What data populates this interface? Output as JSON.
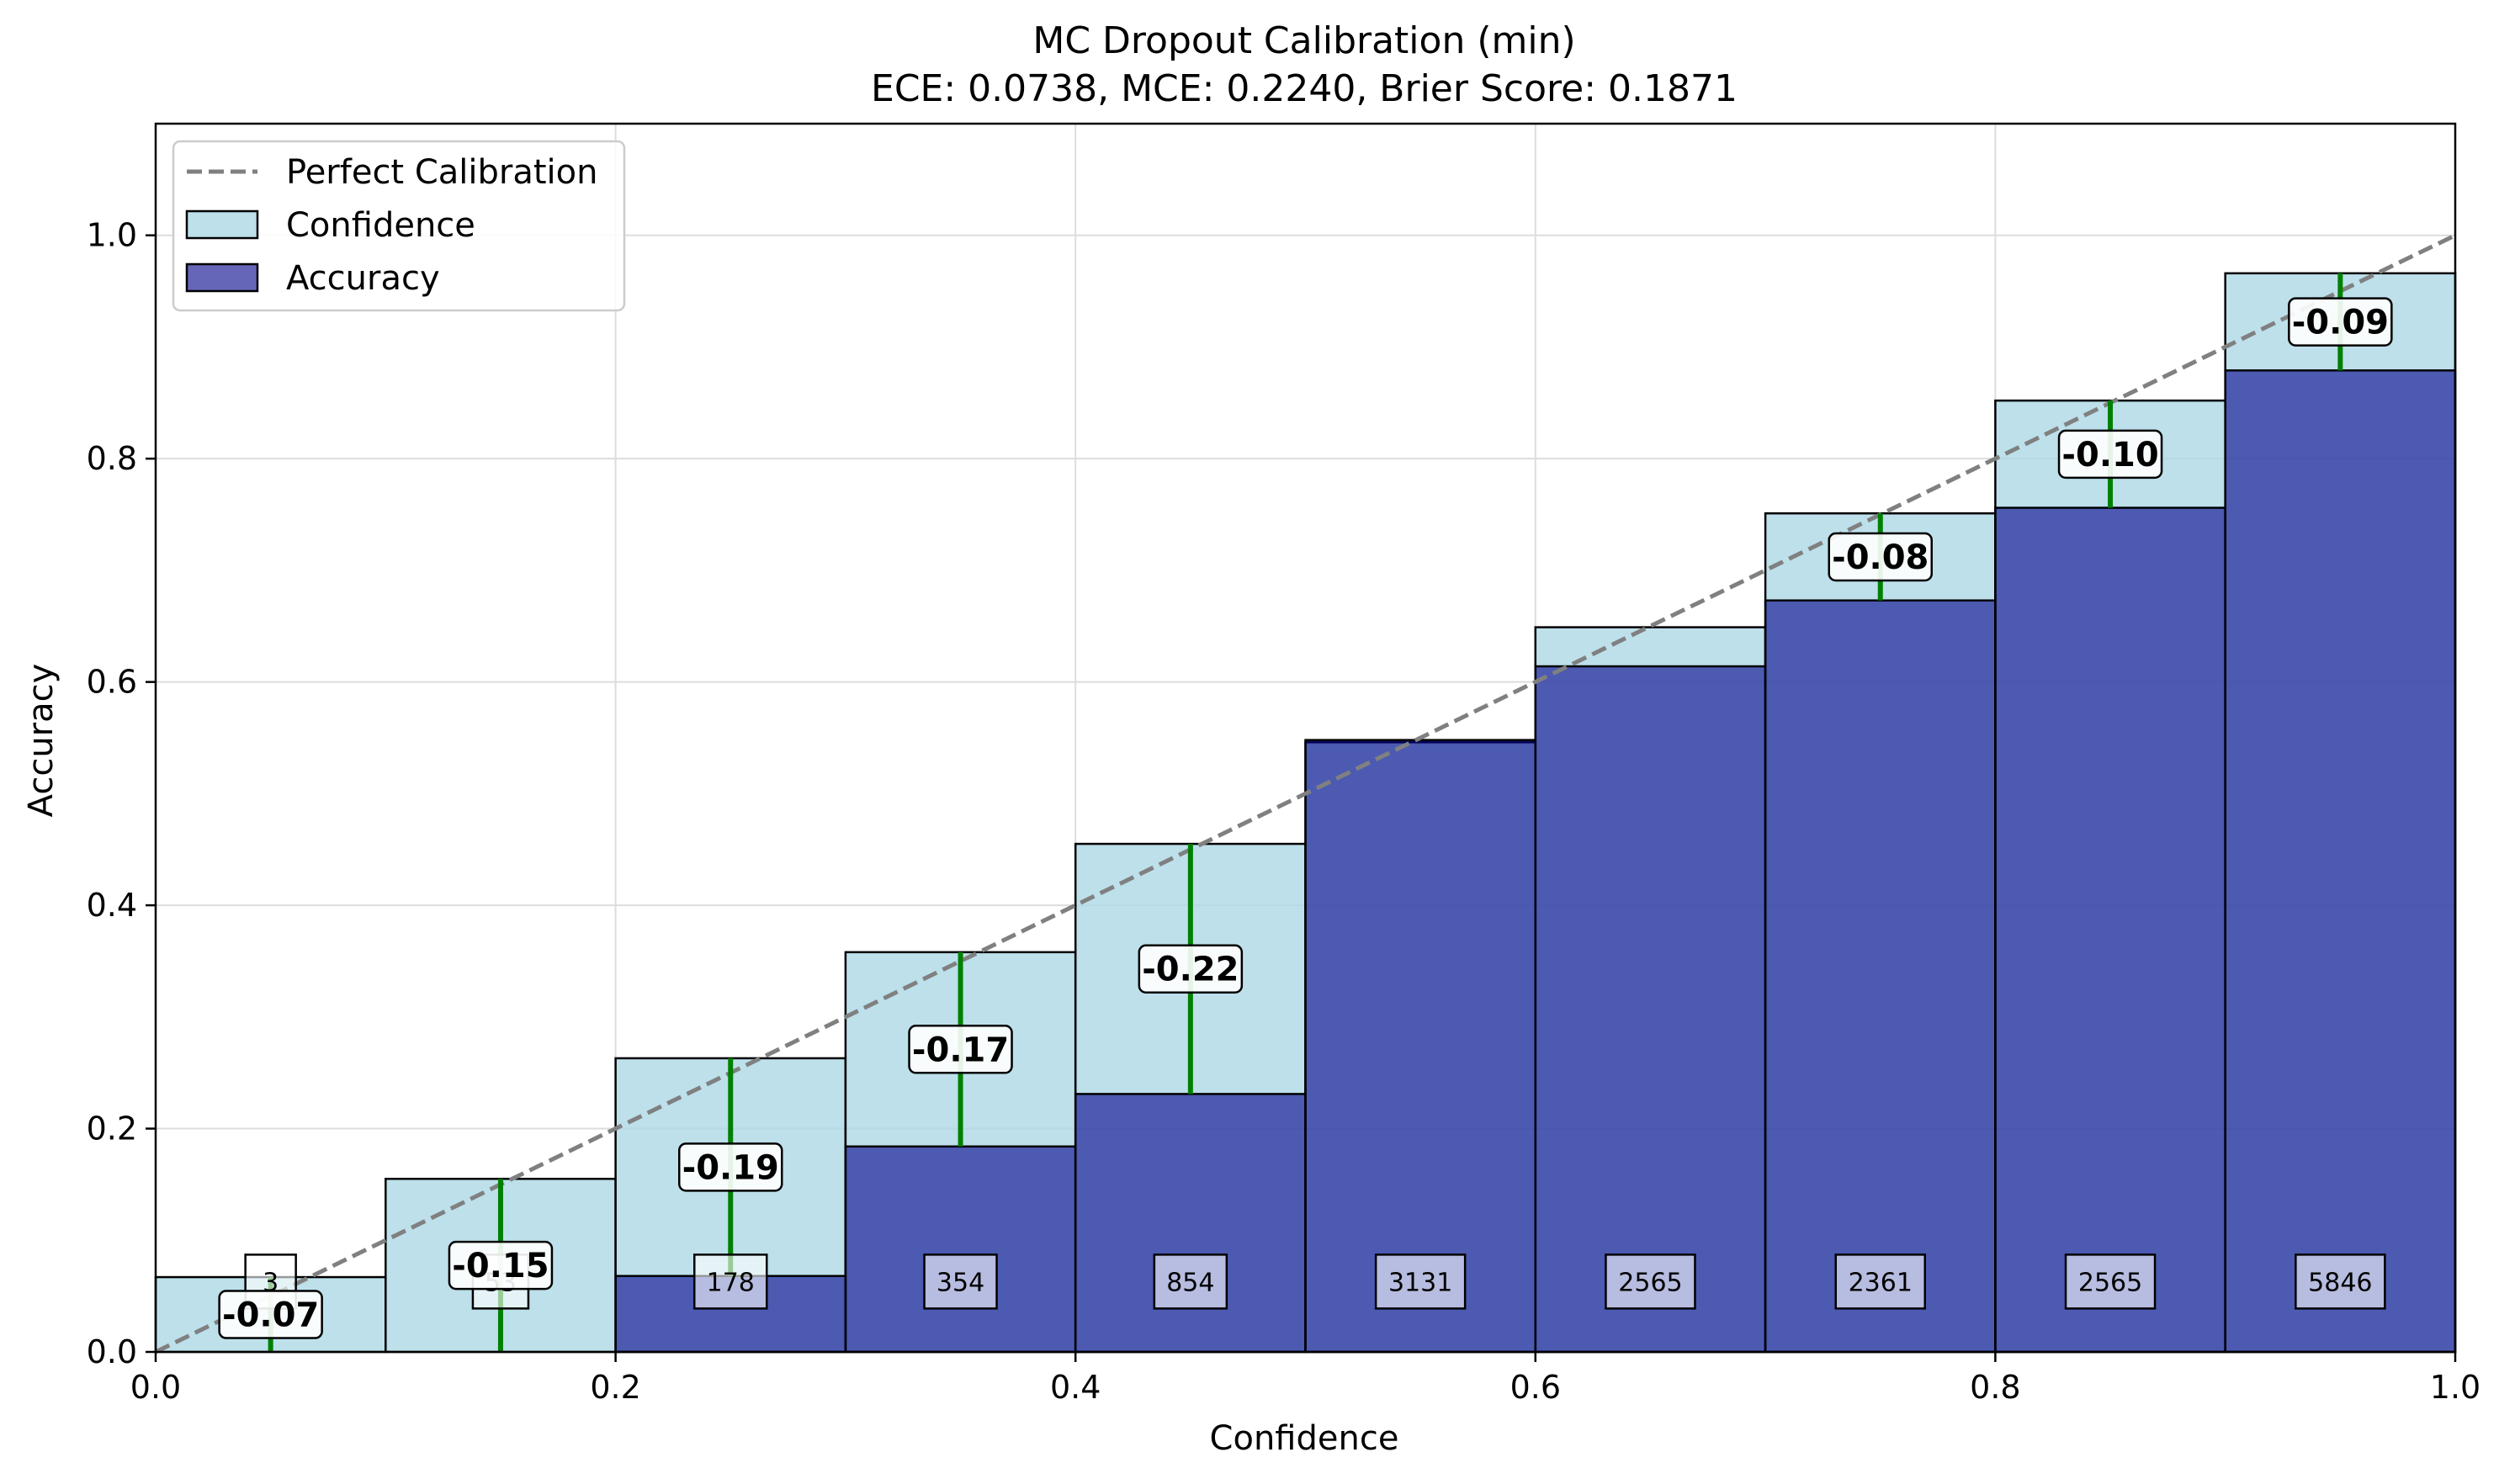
{
  "chart_data": {
    "type": "bar",
    "title": "MC Dropout Calibration (min)",
    "subtitle": "ECE: 0.0738, MCE: 0.2240, Brier Score: 0.1871",
    "xlabel": "Confidence",
    "ylabel": "Accuracy",
    "xlim": [
      0.0,
      1.0
    ],
    "ylim": [
      0.0,
      1.1
    ],
    "xticks": [
      "0.0",
      "0.2",
      "0.4",
      "0.6",
      "0.8",
      "1.0"
    ],
    "yticks": [
      "0.0",
      "0.2",
      "0.4",
      "0.6",
      "0.8",
      "1.0"
    ],
    "grid": true,
    "legend_position": "top-left",
    "legend": [
      "Perfect Calibration",
      "Confidence",
      "Accuracy"
    ],
    "bins": [
      {
        "x0": 0.0,
        "x1": 0.1,
        "confidence": 0.067,
        "accuracy": 0.0,
        "count": "3",
        "gap_label": "-0.07"
      },
      {
        "x0": 0.1,
        "x1": 0.2,
        "confidence": 0.155,
        "accuracy": 0.0,
        "count": "53",
        "gap_label": "-0.15"
      },
      {
        "x0": 0.2,
        "x1": 0.3,
        "confidence": 0.263,
        "accuracy": 0.068,
        "count": "178",
        "gap_label": "-0.19"
      },
      {
        "x0": 0.3,
        "x1": 0.4,
        "confidence": 0.358,
        "accuracy": 0.184,
        "count": "354",
        "gap_label": "-0.17"
      },
      {
        "x0": 0.4,
        "x1": 0.5,
        "confidence": 0.455,
        "accuracy": 0.231,
        "count": "854",
        "gap_label": "-0.22"
      },
      {
        "x0": 0.5,
        "x1": 0.6,
        "confidence": 0.546,
        "accuracy": 0.548,
        "count": "3131",
        "gap_label": ""
      },
      {
        "x0": 0.6,
        "x1": 0.7,
        "confidence": 0.649,
        "accuracy": 0.614,
        "count": "2565",
        "gap_label": ""
      },
      {
        "x0": 0.7,
        "x1": 0.8,
        "confidence": 0.751,
        "accuracy": 0.673,
        "count": "2361",
        "gap_label": "-0.08"
      },
      {
        "x0": 0.8,
        "x1": 0.9,
        "confidence": 0.852,
        "accuracy": 0.756,
        "count": "2565",
        "gap_label": "-0.10"
      },
      {
        "x0": 0.9,
        "x1": 1.0,
        "confidence": 0.966,
        "accuracy": 0.879,
        "count": "5846",
        "gap_label": "-0.09"
      }
    ],
    "colors": {
      "confidence": "#add8e6",
      "accuracy": "#00008b",
      "diagonal": "#808080",
      "gap_line": "#008000",
      "grid": "#dddddd"
    }
  }
}
